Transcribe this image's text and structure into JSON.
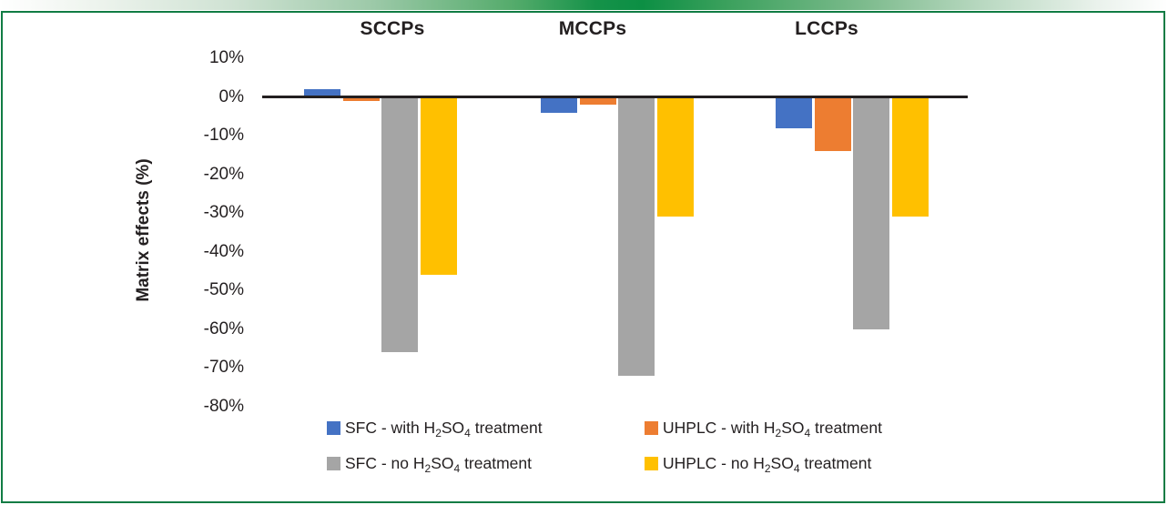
{
  "figure": {
    "ylabel": "Matrix effects (%)"
  },
  "chart_data": {
    "type": "bar",
    "title": "",
    "categories": [
      "SCCPs",
      "MCCPs",
      "LCCPs"
    ],
    "series": [
      {
        "name": "SFC - with H2SO4 treatment",
        "label_parts": [
          {
            "t": "SFC - with H"
          },
          {
            "sub": "2"
          },
          {
            "t": "SO"
          },
          {
            "sub": "4"
          },
          {
            "t": " treatment"
          }
        ],
        "color": "#4472C4",
        "values": [
          2,
          -4,
          -8
        ]
      },
      {
        "name": "UHPLC - with H2SO4 treatment",
        "label_parts": [
          {
            "t": "UHPLC - with H"
          },
          {
            "sub": "2"
          },
          {
            "t": "SO"
          },
          {
            "sub": "4"
          },
          {
            "t": " treatment"
          }
        ],
        "color": "#ED7D31",
        "values": [
          -1,
          -2,
          -14
        ]
      },
      {
        "name": "SFC - no H2SO4 treatment",
        "label_parts": [
          {
            "t": "SFC - no H"
          },
          {
            "sub": "2"
          },
          {
            "t": "SO"
          },
          {
            "sub": "4"
          },
          {
            "t": " treatment"
          }
        ],
        "color": "#A5A5A5",
        "values": [
          -66,
          -72,
          -60
        ]
      },
      {
        "name": "UHPLC - no H2SO4 treatment",
        "label_parts": [
          {
            "t": "UHPLC - no H"
          },
          {
            "sub": "2"
          },
          {
            "t": "SO"
          },
          {
            "sub": "4"
          },
          {
            "t": " treatment"
          }
        ],
        "color": "#FFC000",
        "values": [
          -46,
          -31,
          -31
        ]
      }
    ],
    "xlabel": "",
    "ylabel": "Matrix effects (%)",
    "yticks": [
      10,
      0,
      -10,
      -20,
      -30,
      -40,
      -50,
      -60,
      -70,
      -80
    ],
    "ytick_suffix": "%",
    "ylim": [
      -80,
      10
    ],
    "grid": false,
    "zero_line": true,
    "legend_position": "bottom",
    "colors": {
      "axis_line": "#231f20",
      "frame_border": "#117c44",
      "banner_green": "#0c8f44"
    }
  }
}
